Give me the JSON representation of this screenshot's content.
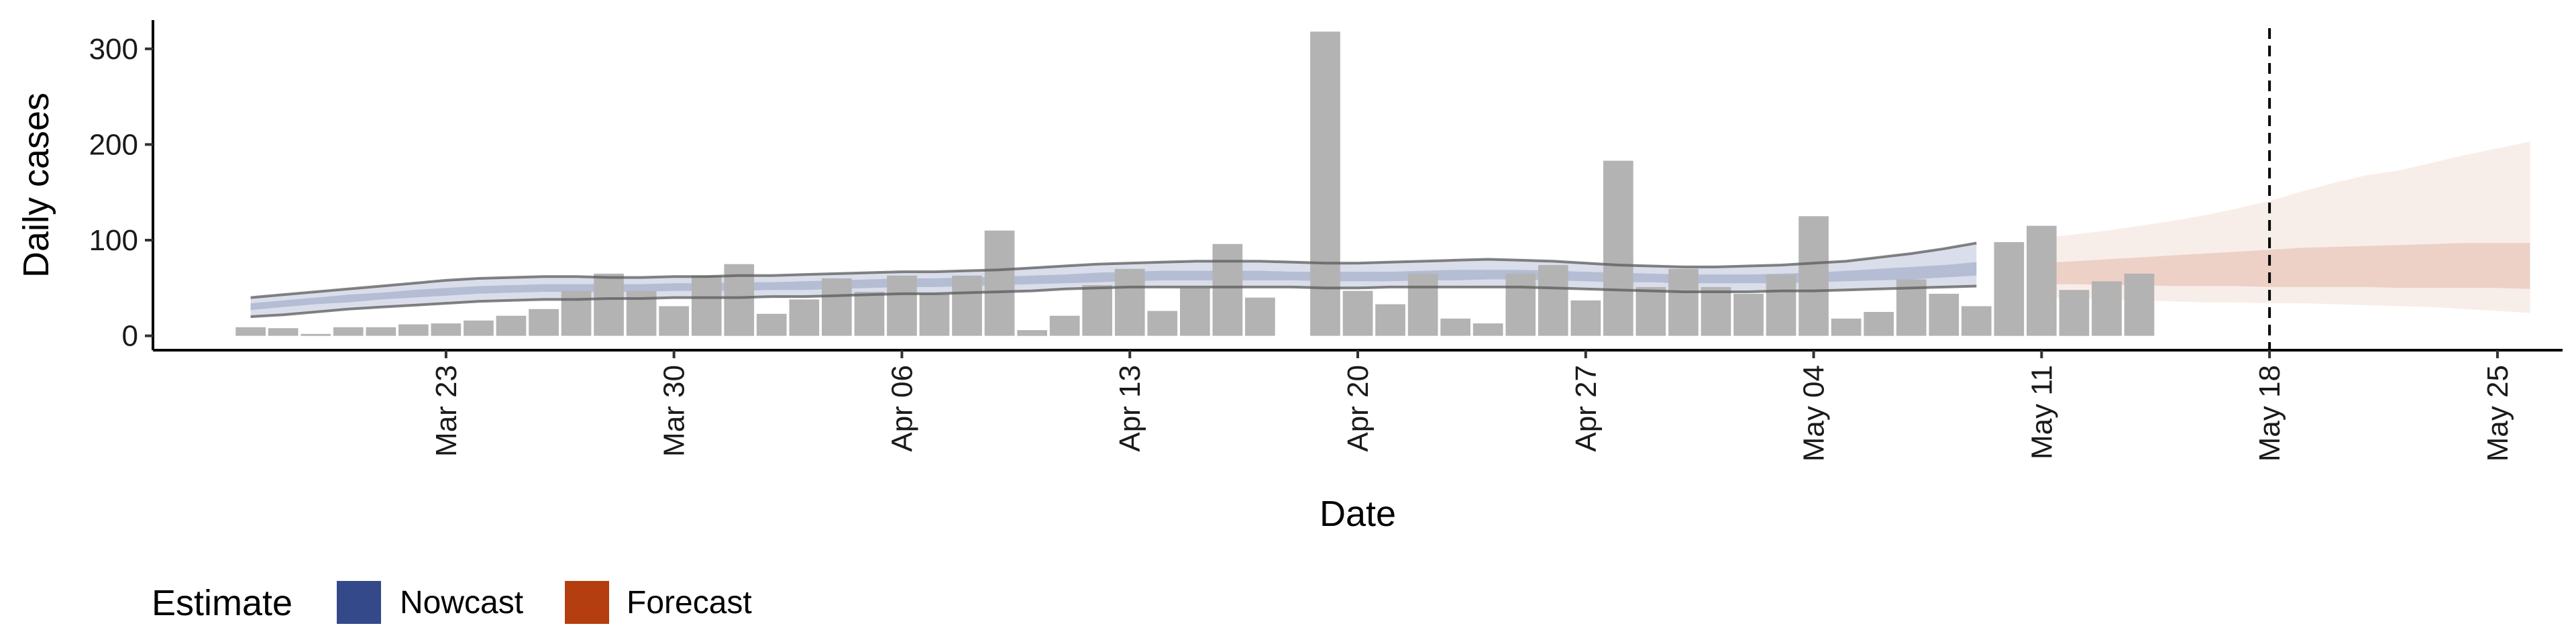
{
  "chart_data": {
    "type": "bar",
    "title": "",
    "xlabel": "Date",
    "ylabel": "Daily cases",
    "ylim": [
      -15,
      330
    ],
    "yticks": [
      0,
      100,
      200,
      300
    ],
    "xlim": [
      "2020-03-14",
      "2020-05-27"
    ],
    "xticks": [
      "2020-03-23",
      "2020-03-30",
      "2020-04-06",
      "2020-04-13",
      "2020-04-20",
      "2020-04-27",
      "2020-05-04",
      "2020-05-11",
      "2020-05-18",
      "2020-05-25"
    ],
    "xtick_labels": [
      "Mar 23",
      "Mar 30",
      "Apr 06",
      "Apr 13",
      "Apr 20",
      "Apr 27",
      "May 04",
      "May 11",
      "May 18",
      "May 25"
    ],
    "vline_date": "2020-05-18",
    "grid": false,
    "legend": {
      "title": "Estimate",
      "position": "bottom-left",
      "items": [
        {
          "label": "Nowcast",
          "color": "#34498a"
        },
        {
          "label": "Forecast",
          "color": "#b43e10"
        }
      ]
    },
    "bar_color": "#b3b3b3",
    "reported_cases": {
      "start_date": "2020-03-17",
      "values": [
        9,
        8,
        2,
        9,
        9,
        12,
        13,
        16,
        21,
        28,
        47,
        65,
        47,
        31,
        63,
        75,
        23,
        38,
        60,
        46,
        63,
        44,
        63,
        110,
        6,
        21,
        53,
        70,
        26,
        50,
        96,
        40,
        null,
        318,
        47,
        33,
        65,
        18,
        13,
        65,
        74,
        37,
        183,
        51,
        70,
        51,
        44,
        64,
        125,
        18,
        25,
        59,
        44,
        31,
        98,
        115,
        48,
        57,
        65
      ]
    },
    "nowcast_band": {
      "start_date": "2020-03-17",
      "color": "#34498a",
      "upper90": [
        40,
        43,
        46,
        49,
        52,
        55,
        58,
        60,
        61,
        62,
        62,
        61,
        61,
        62,
        62,
        63,
        63,
        64,
        65,
        66,
        67,
        67,
        68,
        69,
        71,
        73,
        75,
        76,
        77,
        78,
        78,
        78,
        77,
        76,
        76,
        77,
        78,
        79,
        80,
        79,
        78,
        76,
        74,
        73,
        72,
        72,
        73,
        74,
        76,
        78,
        82,
        86,
        91,
        97
      ],
      "upper50": [
        34,
        37,
        40,
        43,
        45,
        48,
        50,
        52,
        53,
        54,
        54,
        54,
        54,
        55,
        55,
        56,
        56,
        57,
        58,
        59,
        60,
        60,
        61,
        62,
        63,
        64,
        66,
        67,
        68,
        68,
        68,
        68,
        67,
        67,
        67,
        67,
        68,
        69,
        69,
        69,
        68,
        67,
        66,
        65,
        64,
        64,
        64,
        65,
        66,
        68,
        70,
        72,
        74,
        77
      ],
      "lower50": [
        27,
        30,
        33,
        35,
        38,
        40,
        42,
        44,
        45,
        46,
        46,
        46,
        46,
        47,
        47,
        47,
        48,
        48,
        49,
        50,
        51,
        51,
        52,
        53,
        54,
        55,
        56,
        57,
        58,
        58,
        58,
        58,
        58,
        57,
        57,
        57,
        58,
        58,
        59,
        59,
        58,
        57,
        56,
        56,
        55,
        55,
        55,
        55,
        56,
        57,
        58,
        59,
        61,
        63
      ],
      "lower90": [
        20,
        22,
        25,
        28,
        30,
        32,
        34,
        36,
        37,
        38,
        38,
        39,
        39,
        40,
        40,
        40,
        41,
        41,
        42,
        43,
        44,
        44,
        45,
        46,
        47,
        49,
        50,
        51,
        51,
        51,
        51,
        51,
        51,
        50,
        50,
        51,
        51,
        51,
        51,
        51,
        50,
        49,
        48,
        47,
        46,
        46,
        46,
        47,
        47,
        48,
        49,
        50,
        51,
        52
      ]
    },
    "forecast_band": {
      "start_date": "2020-05-11",
      "color": "#b43e10",
      "upper90": [
        102,
        106,
        110,
        115,
        120,
        126,
        133,
        141,
        151,
        160,
        168,
        173,
        181,
        189,
        196,
        203
      ],
      "upper50": [
        76,
        78,
        80,
        82,
        84,
        86,
        88,
        90,
        92,
        93,
        94,
        95,
        96,
        97,
        97,
        97
      ],
      "lower50": [
        54,
        54,
        53,
        53,
        52,
        52,
        52,
        51,
        51,
        51,
        51,
        50,
        50,
        50,
        50,
        49
      ],
      "lower90": [
        40,
        39,
        38,
        37,
        36,
        35,
        35,
        34,
        34,
        33,
        32,
        31,
        30,
        28,
        26,
        24
      ]
    }
  }
}
